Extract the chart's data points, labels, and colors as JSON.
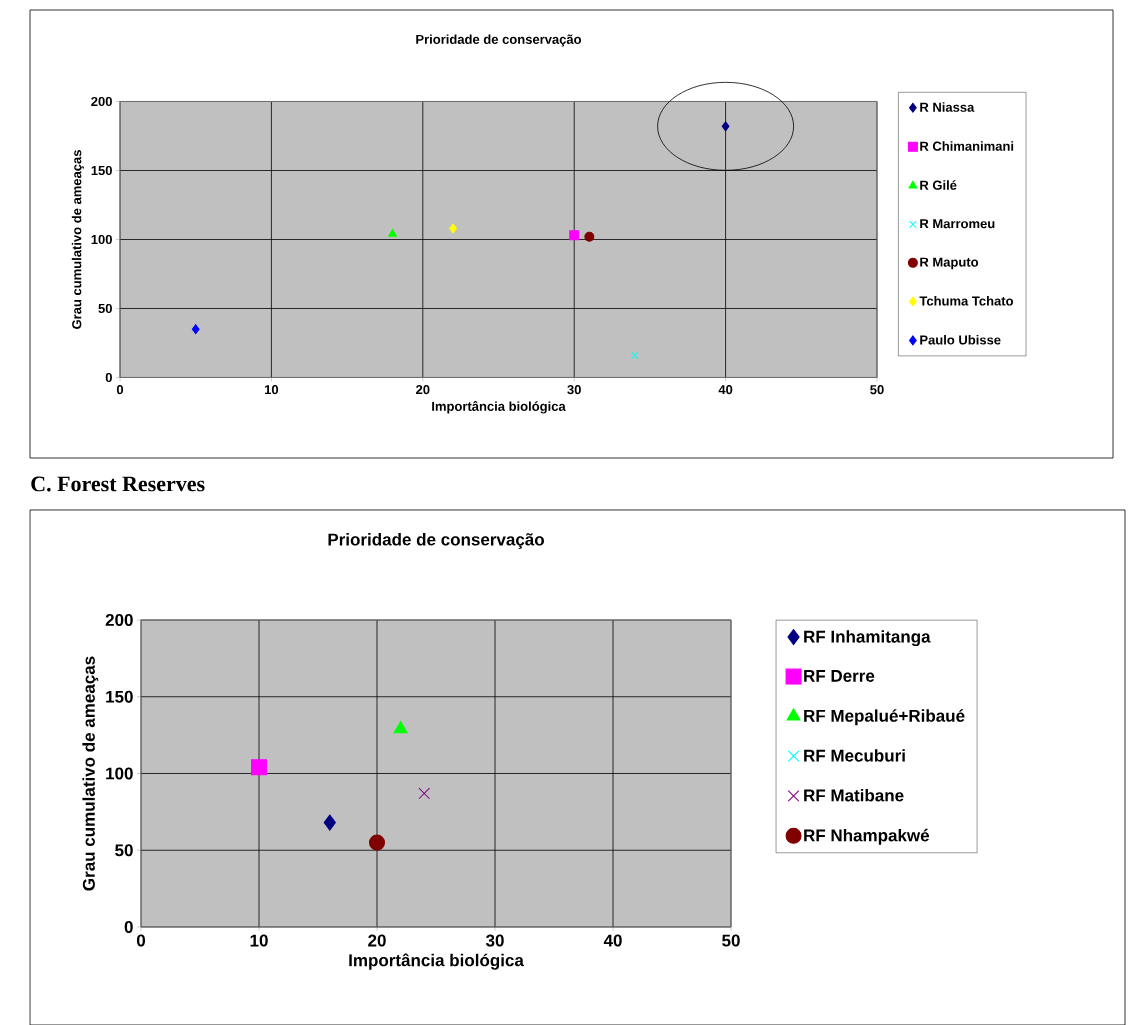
{
  "chart_data": [
    {
      "type": "scatter",
      "title": "Prioridade de conservação",
      "xlabel": "Importância biológica",
      "ylabel": "Grau cumulativo de ameaças",
      "xlim": [
        0,
        50
      ],
      "ylim": [
        0,
        200
      ],
      "xticks": [
        0,
        10,
        20,
        30,
        40,
        50
      ],
      "yticks": [
        0,
        50,
        100,
        150,
        200
      ],
      "grid": true,
      "legend": "right",
      "series": [
        {
          "name": "R Niassa",
          "color": "#000080",
          "marker": "diamond",
          "x": [
            40
          ],
          "values": [
            182
          ]
        },
        {
          "name": "R Chimanimani",
          "color": "#ff00ff",
          "marker": "square",
          "x": [
            30
          ],
          "values": [
            103
          ]
        },
        {
          "name": "R Gilé",
          "color": "#00ff00",
          "marker": "triangle",
          "x": [
            18
          ],
          "values": [
            104
          ]
        },
        {
          "name": "R Marromeu",
          "color": "#00ffff",
          "marker": "cross",
          "x": [
            34
          ],
          "values": [
            16
          ]
        },
        {
          "name": "R Maputo",
          "color": "#800000",
          "marker": "circle",
          "x": [
            31
          ],
          "values": [
            102
          ]
        },
        {
          "name": "Tchuma Tchato",
          "color": "#ffff00",
          "marker": "diamond",
          "x": [
            22
          ],
          "values": [
            108
          ]
        },
        {
          "name": "Paulo Ubisse",
          "color": "#0000ff",
          "marker": "diamond",
          "x": [
            5
          ],
          "values": [
            35
          ]
        }
      ]
    },
    {
      "type": "scatter",
      "title": "C. Forest Reserves",
      "subtitle": "Prioridade de conservação",
      "xlabel": "Importância biológica",
      "ylabel": "Grau cumulativo de ameaças",
      "xlim": [
        0,
        50
      ],
      "ylim": [
        0,
        200
      ],
      "xticks": [
        0,
        10,
        20,
        30,
        40,
        50
      ],
      "yticks": [
        0,
        50,
        100,
        150,
        200
      ],
      "grid": true,
      "legend": "right",
      "series": [
        {
          "name": "RF Inhamitanga",
          "color": "#000080",
          "marker": "diamond",
          "x": [
            16
          ],
          "values": [
            68
          ]
        },
        {
          "name": "RF Derre",
          "color": "#ff00ff",
          "marker": "square",
          "x": [
            10
          ],
          "values": [
            104
          ]
        },
        {
          "name": "RF Mepalué+Ribaué",
          "color": "#00ff00",
          "marker": "triangle",
          "x": [
            22
          ],
          "values": [
            129
          ]
        },
        {
          "name": "RF Mecuburi",
          "color": "#00ffff",
          "marker": "cross",
          "x": [
            null
          ],
          "values": [
            null
          ]
        },
        {
          "name": "RF Matibane",
          "color": "#800080",
          "marker": "cross",
          "x": [
            24
          ],
          "values": [
            87
          ]
        },
        {
          "name": "RF Nhampakwé",
          "color": "#800000",
          "marker": "circle",
          "x": [
            20
          ],
          "values": [
            55
          ]
        }
      ]
    }
  ]
}
